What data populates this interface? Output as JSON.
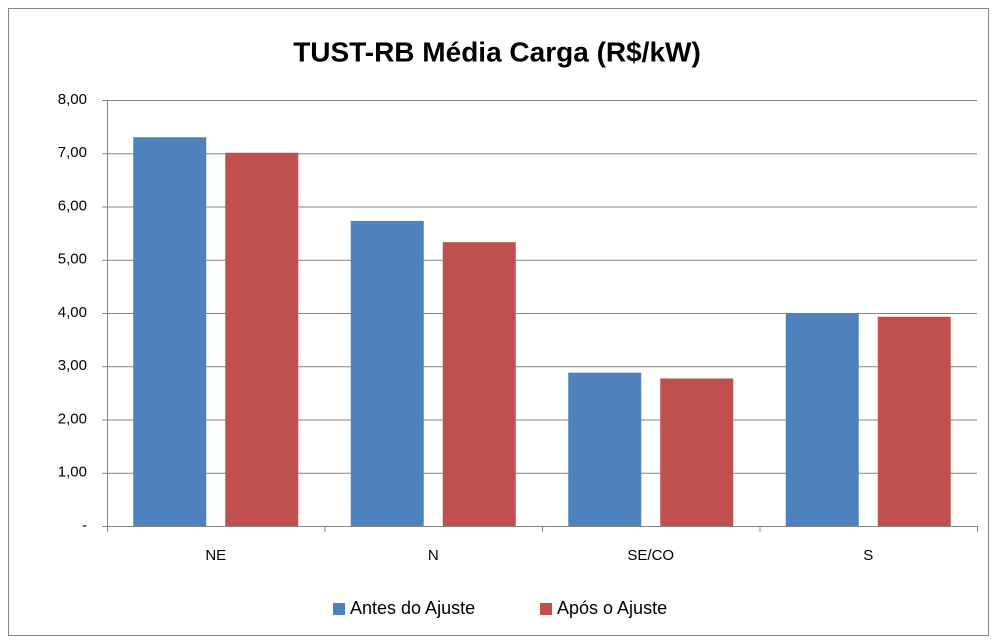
{
  "chart_data": {
    "type": "bar",
    "title": "TUST-RB Média Carga (R$/kW)",
    "categories": [
      "NE",
      "N",
      "SE/CO",
      "S"
    ],
    "series": [
      {
        "name": "Antes do Ajuste",
        "color": "#4f81bd",
        "values": [
          7.3,
          5.73,
          2.88,
          4.0
        ]
      },
      {
        "name": "Após o Ajuste",
        "color": "#c0504d",
        "values": [
          7.01,
          5.33,
          2.77,
          3.93
        ]
      }
    ],
    "ylim": [
      0,
      8
    ],
    "yticks": [
      {
        "value": 0,
        "label": "-"
      },
      {
        "value": 1,
        "label": "1,00"
      },
      {
        "value": 2,
        "label": "2,00"
      },
      {
        "value": 3,
        "label": "3,00"
      },
      {
        "value": 4,
        "label": "4,00"
      },
      {
        "value": 5,
        "label": "5,00"
      },
      {
        "value": 6,
        "label": "6,00"
      },
      {
        "value": 7,
        "label": "7,00"
      },
      {
        "value": 8,
        "label": "8,00"
      }
    ],
    "grid": true,
    "legend": "bottom"
  }
}
